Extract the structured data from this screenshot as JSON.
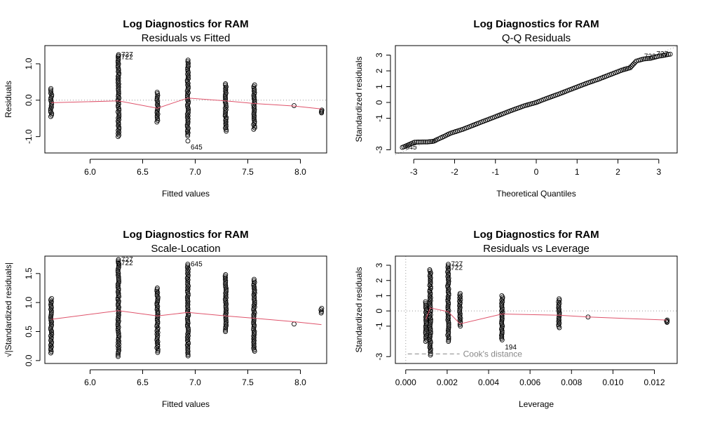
{
  "colors": {
    "points": "#000000",
    "smoother": "#DF536B",
    "reference": "#999999",
    "cook": "#888888"
  },
  "chart_data": [
    {
      "id": "rvf",
      "type": "scatter",
      "title": "Log Diagnostics for RAM",
      "subtitle": "Residuals vs Fitted",
      "xlabel": "Fitted values",
      "ylabel": "Residuals",
      "xlim": [
        5.57,
        8.25
      ],
      "ylim": [
        -1.45,
        1.5
      ],
      "xticks": [
        6.0,
        6.5,
        7.0,
        7.5,
        8.0
      ],
      "xtick_labels": [
        "6.0",
        "6.5",
        "7.0",
        "7.5",
        "8.0"
      ],
      "yticks": [
        -1.0,
        0.0,
        1.0
      ],
      "ytick_labels": [
        "-1.0",
        "0.0",
        "1.0"
      ],
      "reference_y": 0,
      "groups": [
        {
          "x": 5.63,
          "y_min": -0.45,
          "y_max": 0.32
        },
        {
          "x": 6.27,
          "y_min": -1.0,
          "y_max": 1.25
        },
        {
          "x": 6.64,
          "y_min": -0.6,
          "y_max": 0.22
        },
        {
          "x": 6.93,
          "y_min": -0.98,
          "y_max": 1.1
        },
        {
          "x": 7.29,
          "y_min": -0.85,
          "y_max": 0.45
        },
        {
          "x": 7.56,
          "y_min": -0.8,
          "y_max": 0.42
        },
        {
          "x": 7.94,
          "y_min": -0.15,
          "y_max": -0.15
        },
        {
          "x": 8.2,
          "y_min": -0.35,
          "y_max": -0.27
        }
      ],
      "extra_points": [
        {
          "x": 6.93,
          "y": -1.12
        },
        {
          "x": 6.27,
          "y": 1.21
        }
      ],
      "smoother": [
        [
          5.63,
          -0.07
        ],
        [
          6.27,
          -0.02
        ],
        [
          6.64,
          -0.22
        ],
        [
          6.93,
          0.06
        ],
        [
          7.29,
          -0.02
        ],
        [
          7.56,
          -0.09
        ],
        [
          7.94,
          -0.16
        ],
        [
          8.2,
          -0.24
        ]
      ],
      "annotations": [
        {
          "text": "727",
          "x": 6.27,
          "y": 1.25
        },
        {
          "text": "722",
          "x": 6.27,
          "y": 1.18
        },
        {
          "text": "645",
          "x": 6.93,
          "y": -1.12
        }
      ]
    },
    {
      "id": "qq",
      "type": "scatter",
      "title": "Log Diagnostics for RAM",
      "subtitle": "Q-Q Residuals",
      "xlabel": "Theoretical Quantiles",
      "ylabel": "Standardized residuals",
      "xlim": [
        -3.45,
        3.45
      ],
      "ylim": [
        -3.2,
        3.6
      ],
      "xticks": [
        -3,
        -2,
        -1,
        0,
        1,
        2,
        3
      ],
      "xtick_labels": [
        "-3",
        "-2",
        "-1",
        "0",
        "1",
        "2",
        "3"
      ],
      "yticks": [
        -3,
        -1,
        0,
        1,
        2,
        3
      ],
      "ytick_labels": [
        "-3",
        "-1",
        "0",
        "1",
        "2",
        "3"
      ],
      "reference_line": [
        [
          -3.45,
          -3.3
        ],
        [
          3.45,
          3.55
        ]
      ],
      "points": [
        [
          -3.28,
          -2.85
        ],
        [
          -2.98,
          -2.52
        ],
        [
          -2.8,
          -2.5
        ],
        [
          -2.67,
          -2.5
        ],
        [
          -2.58,
          -2.48
        ],
        [
          -2.5,
          -2.45
        ],
        [
          -2.43,
          -2.35
        ],
        [
          -2.3,
          -2.2
        ],
        [
          -2.1,
          -1.95
        ],
        [
          -1.8,
          -1.7
        ],
        [
          -1.5,
          -1.4
        ],
        [
          -1.2,
          -1.1
        ],
        [
          -0.9,
          -0.8
        ],
        [
          -0.6,
          -0.5
        ],
        [
          -0.3,
          -0.22
        ],
        [
          0.0,
          0.0
        ],
        [
          0.3,
          0.3
        ],
        [
          0.6,
          0.58
        ],
        [
          0.9,
          0.88
        ],
        [
          1.2,
          1.18
        ],
        [
          1.5,
          1.45
        ],
        [
          1.8,
          1.75
        ],
        [
          2.1,
          2.05
        ],
        [
          2.3,
          2.2
        ],
        [
          2.45,
          2.62
        ],
        [
          2.55,
          2.7
        ],
        [
          2.63,
          2.75
        ],
        [
          2.72,
          2.78
        ],
        [
          2.8,
          2.8
        ],
        [
          2.98,
          2.92
        ],
        [
          3.28,
          3.06
        ]
      ],
      "annotations": [
        {
          "text": "645",
          "x": -3.28,
          "y": -2.85
        },
        {
          "text": "722",
          "x": 2.98,
          "y": 2.92
        },
        {
          "text": "727",
          "x": 3.28,
          "y": 3.06
        }
      ]
    },
    {
      "id": "sl",
      "type": "scatter",
      "title": "Log Diagnostics for RAM",
      "subtitle": "Scale-Location",
      "xlabel": "Fitted values",
      "ylabel": "√|Standardized residuals|",
      "xlim": [
        5.57,
        8.25
      ],
      "ylim": [
        -0.05,
        1.8
      ],
      "xticks": [
        6.0,
        6.5,
        7.0,
        7.5,
        8.0
      ],
      "xtick_labels": [
        "6.0",
        "6.5",
        "7.0",
        "7.5",
        "8.0"
      ],
      "yticks": [
        0.0,
        0.5,
        1.0,
        1.5
      ],
      "ytick_labels": [
        "0.0",
        "0.5",
        "1.0",
        "1.5"
      ],
      "groups": [
        {
          "x": 5.63,
          "y_min": 0.13,
          "y_max": 1.07
        },
        {
          "x": 6.27,
          "y_min": 0.07,
          "y_max": 1.74
        },
        {
          "x": 6.64,
          "y_min": 0.14,
          "y_max": 1.25
        },
        {
          "x": 6.93,
          "y_min": 0.08,
          "y_max": 1.66
        },
        {
          "x": 7.29,
          "y_min": 0.5,
          "y_max": 1.48
        },
        {
          "x": 7.56,
          "y_min": 0.16,
          "y_max": 1.4
        },
        {
          "x": 7.94,
          "y_min": 0.63,
          "y_max": 0.63
        },
        {
          "x": 8.2,
          "y_min": 0.82,
          "y_max": 0.9
        }
      ],
      "extra_points": [
        {
          "x": 6.27,
          "y": 1.68
        }
      ],
      "smoother": [
        [
          5.63,
          0.71
        ],
        [
          6.27,
          0.86
        ],
        [
          6.64,
          0.77
        ],
        [
          6.93,
          0.83
        ],
        [
          7.29,
          0.77
        ],
        [
          7.56,
          0.73
        ],
        [
          7.94,
          0.67
        ],
        [
          8.2,
          0.62
        ]
      ],
      "annotations": [
        {
          "text": "727",
          "x": 6.27,
          "y": 1.74
        },
        {
          "text": "722",
          "x": 6.27,
          "y": 1.68
        },
        {
          "text": "645",
          "x": 6.93,
          "y": 1.66
        }
      ]
    },
    {
      "id": "rvl",
      "type": "scatter",
      "title": "Log Diagnostics for RAM",
      "subtitle": "Residuals vs Leverage",
      "xlabel": "Leverage",
      "ylabel": "Standardized residuals",
      "xlim": [
        -0.0005,
        0.0131
      ],
      "ylim": [
        -3.45,
        3.6
      ],
      "xticks": [
        0.0,
        0.002,
        0.004,
        0.006,
        0.008,
        0.01,
        0.012
      ],
      "xtick_labels": [
        "0.000",
        "0.002",
        "0.004",
        "0.006",
        "0.008",
        "0.010",
        "0.012"
      ],
      "yticks": [
        -3,
        -1,
        0,
        1,
        2,
        3
      ],
      "ytick_labels": [
        "-3",
        "-1",
        "0",
        "1",
        "2",
        "3"
      ],
      "reference_x": 0,
      "reference_y": 0,
      "groups": [
        {
          "x": 0.00098,
          "y_min": -2.0,
          "y_max": 0.6
        },
        {
          "x": 0.00118,
          "y_min": -2.9,
          "y_max": 2.7
        },
        {
          "x": 0.00205,
          "y_min": -2.0,
          "y_max": 3.06
        },
        {
          "x": 0.00262,
          "y_min": -1.0,
          "y_max": 1.15
        },
        {
          "x": 0.00465,
          "y_min": -1.9,
          "y_max": 1.0
        },
        {
          "x": 0.0074,
          "y_min": -1.1,
          "y_max": 0.8
        },
        {
          "x": 0.0088,
          "y_min": -0.4,
          "y_max": -0.4
        },
        {
          "x": 0.0126,
          "y_min": -0.75,
          "y_max": -0.6
        }
      ],
      "smoother": [
        [
          0.00098,
          -0.55
        ],
        [
          0.00118,
          0.2
        ],
        [
          0.00205,
          -0.05
        ],
        [
          0.00262,
          -0.85
        ],
        [
          0.00465,
          -0.2
        ],
        [
          0.0074,
          -0.28
        ],
        [
          0.0088,
          -0.4
        ],
        [
          0.0126,
          -0.6
        ]
      ],
      "cook_line": [
        [
          0.0001,
          -2.82
        ],
        [
          0.0026,
          -2.82
        ]
      ],
      "cook_label": "Cook's distance",
      "annotations": [
        {
          "text": "727",
          "x": 0.00205,
          "y": 3.06
        },
        {
          "text": "722",
          "x": 0.00205,
          "y": 2.85
        },
        {
          "text": "194",
          "x": 0.00465,
          "y": -2.3
        }
      ]
    }
  ]
}
